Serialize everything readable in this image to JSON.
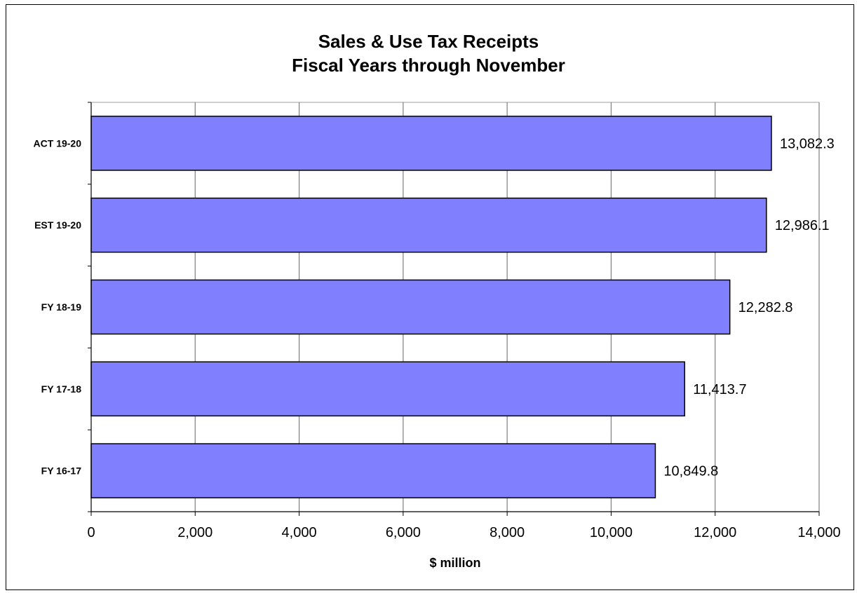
{
  "chart_data": {
    "type": "bar",
    "orientation": "horizontal",
    "title": "Sales & Use Tax Receipts",
    "subtitle": "Fiscal Years through November",
    "xlabel": "$ million",
    "ylabel": "",
    "categories": [
      "ACT 19-20",
      "EST 19-20",
      "FY 18-19",
      "FY 17-18",
      "FY 16-17"
    ],
    "values": [
      13082.3,
      12986.1,
      12282.8,
      11413.7,
      10849.8
    ],
    "value_labels": [
      "13,082.3",
      "12,986.1",
      "12,282.8",
      "11,413.7",
      "10,849.8"
    ],
    "xlim": [
      0,
      14000
    ],
    "x_ticks": [
      0,
      2000,
      4000,
      6000,
      8000,
      10000,
      12000,
      14000
    ],
    "x_tick_labels": [
      "0",
      "2,000",
      "4,000",
      "6,000",
      "8,000",
      "10,000",
      "12,000",
      "14,000"
    ],
    "grid": true,
    "legend": "none",
    "bar_color": "#8080ff",
    "bar_edge_color": "#000000",
    "grid_color": "#000000"
  }
}
